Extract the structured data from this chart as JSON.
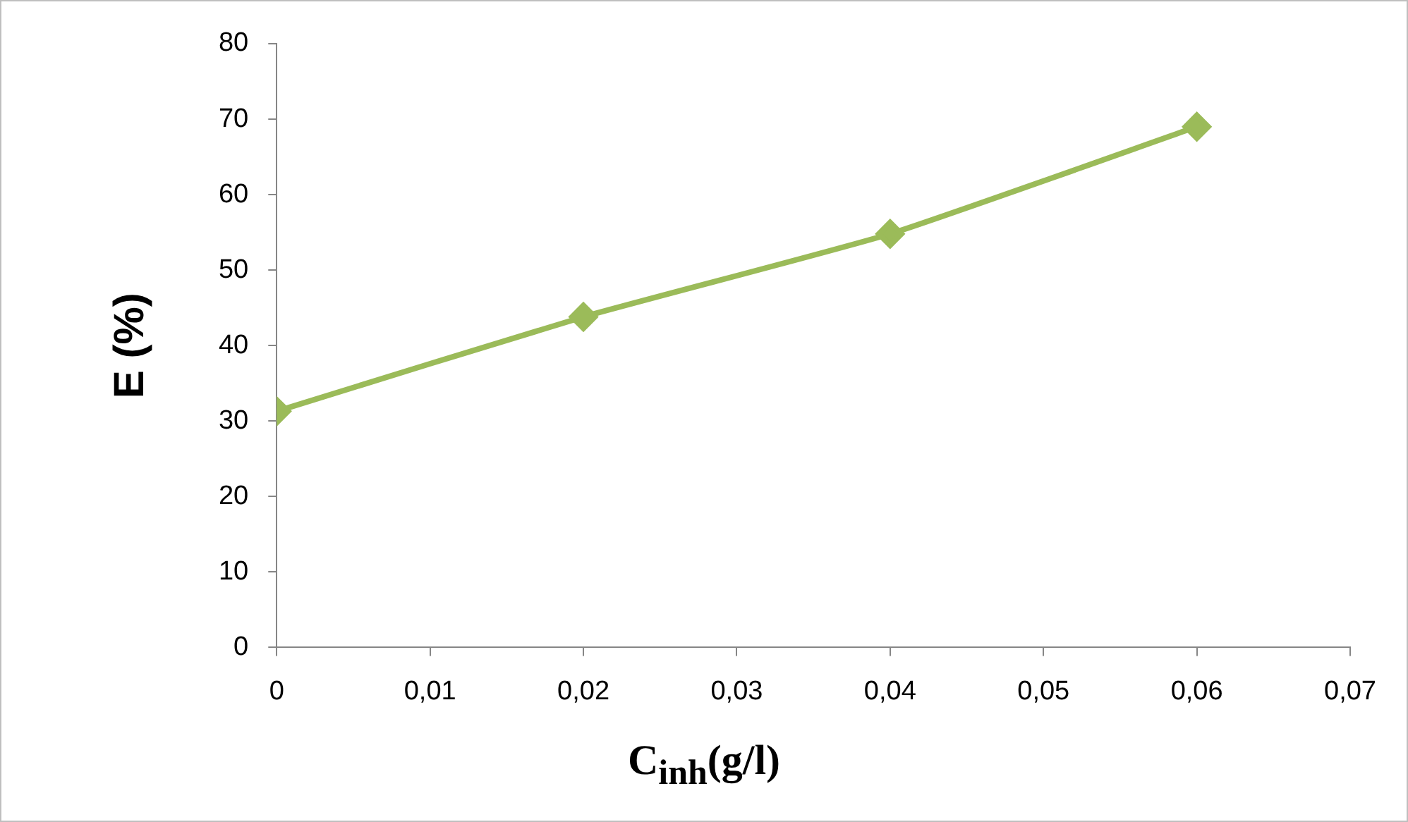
{
  "chart_data": {
    "type": "line",
    "xlabel": "C$_{inh}$(g/l)",
    "ylabel": "E (%)",
    "x": [
      0,
      0.02,
      0.04,
      0.06
    ],
    "series": [
      {
        "color": "#9bbb59",
        "values": [
          31.3,
          43.8,
          54.8,
          69.0
        ]
      }
    ],
    "xlim": [
      0,
      0.07
    ],
    "xticks": [
      0,
      {
        "value": 0.01,
        "label": "0,01"
      },
      {
        "value": 0.02,
        "label": "0,02"
      },
      {
        "value": 0.03,
        "label": "0,03"
      },
      {
        "value": 0.04,
        "label": "0,04"
      },
      {
        "value": 0.05,
        "label": "0,05"
      },
      {
        "value": 0.06,
        "label": "0,06"
      },
      {
        "value": 0.07,
        "label": "0,07"
      }
    ],
    "ylim": [
      0,
      80
    ],
    "yticks": [
      0,
      10,
      20,
      30,
      40,
      50,
      60,
      70,
      80
    ],
    "grid": false,
    "legend": false,
    "marker": "diamond",
    "line_style": "solid"
  }
}
